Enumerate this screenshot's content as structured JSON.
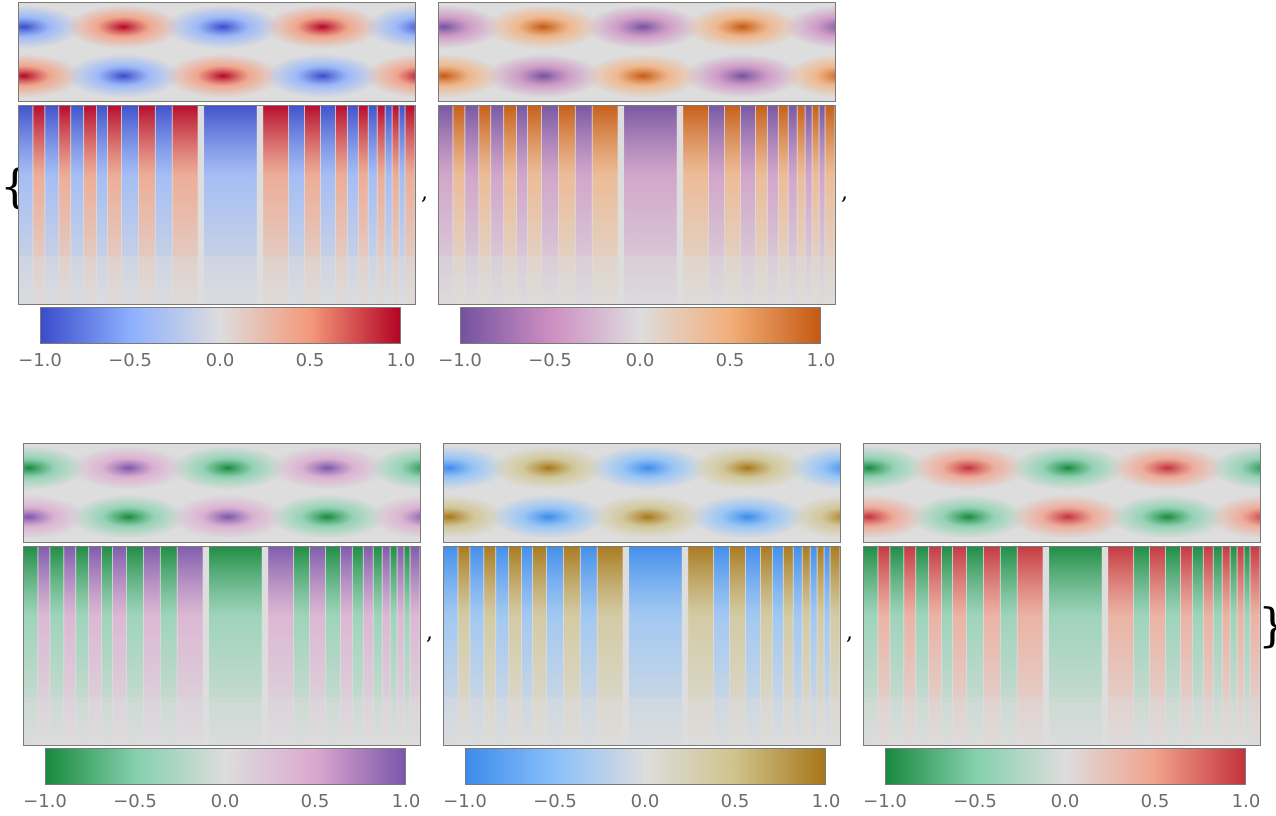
{
  "brackets": {
    "open": "{",
    "close": "}",
    "separator": ","
  },
  "panels": [
    {
      "colors": [
        "#3a4ccb",
        "#8db0fe",
        "#dddddd",
        "#f4997a",
        "#b40426"
      ],
      "ticks": [
        "−1.0",
        "−0.5",
        "0.0",
        "0.5",
        "1.0"
      ]
    },
    {
      "colors": [
        "#7452a0",
        "#cd8ec2",
        "#dddddd",
        "#f3ae7a",
        "#c55a11"
      ],
      "ticks": [
        "−1.0",
        "−0.5",
        "0.0",
        "0.5",
        "1.0"
      ]
    },
    {
      "colors": [
        "#188a3e",
        "#84d0ad",
        "#dddddd",
        "#dba8cf",
        "#7c56ab"
      ],
      "ticks": [
        "−1.0",
        "−0.5",
        "0.0",
        "0.5",
        "1.0"
      ]
    },
    {
      "colors": [
        "#3c8bec",
        "#8ac0fa",
        "#dddddd",
        "#cfc38c",
        "#a77718"
      ],
      "ticks": [
        "−1.0",
        "−0.5",
        "0.0",
        "0.5",
        "1.0"
      ]
    },
    {
      "colors": [
        "#188a3e",
        "#84d0ad",
        "#dddddd",
        "#f1a28c",
        "#c4323b"
      ],
      "ticks": [
        "−1.0",
        "−0.5",
        "0.0",
        "0.5",
        "1.0"
      ]
    }
  ]
}
